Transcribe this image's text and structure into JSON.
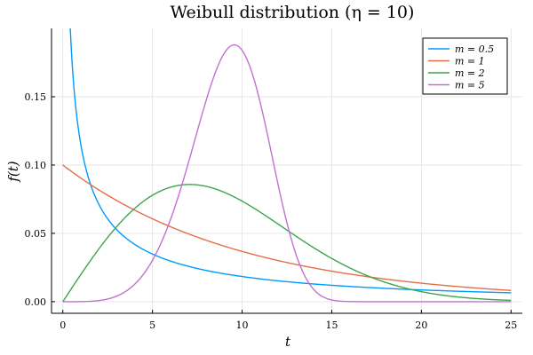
{
  "chart_data": {
    "type": "line",
    "title": "Weibull distribution (η = 10)",
    "xlabel": "t",
    "ylabel": "f(t)",
    "xlim": [
      0,
      25
    ],
    "ylim": [
      0,
      0.2
    ],
    "xticks": [
      0,
      5,
      10,
      15,
      20,
      25
    ],
    "xtick_labels": [
      "0",
      "5",
      "10",
      "15",
      "20",
      "25"
    ],
    "yticks": [
      0,
      0.05,
      0.1,
      0.15
    ],
    "ytick_labels": [
      "0.00",
      "0.05",
      "0.10",
      "0.15"
    ],
    "grid": true,
    "legend_position": "top-right",
    "eta": 10,
    "series": [
      {
        "name": "m = 0.5",
        "m": 0.5,
        "color": "#009AFA"
      },
      {
        "name": "m = 1",
        "m": 1,
        "color": "#E36F47"
      },
      {
        "name": "m = 2",
        "m": 2,
        "color": "#3EA44E"
      },
      {
        "name": "m = 5",
        "m": 5,
        "color": "#C271D2"
      }
    ]
  }
}
